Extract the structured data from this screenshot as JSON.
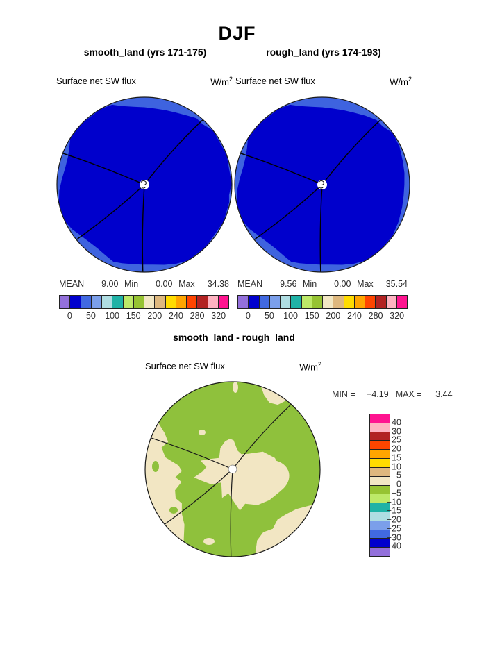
{
  "title": "DJF",
  "panels": [
    {
      "subtitle": "smooth_land (yrs 171-175)",
      "field": "Surface net SW flux",
      "units_base": "W/m",
      "units_exp": "2",
      "stats": {
        "mean_label": "MEAN=",
        "mean": "9.00",
        "min_label": "Min=",
        "min": "0.00",
        "max_label": "Max=",
        "max": "34.38"
      }
    },
    {
      "subtitle": "rough_land (yrs 174-193)",
      "field": "Surface net SW flux",
      "units_base": "W/m",
      "units_exp": "2",
      "stats": {
        "mean_label": "MEAN=",
        "mean": "9.56",
        "min_label": "Min=",
        "min": "0.00",
        "max_label": "Max=",
        "max": "35.54"
      }
    }
  ],
  "diff": {
    "title": "smooth_land - rough_land",
    "field": "Surface net SW flux",
    "units_base": "W/m",
    "units_exp": "2",
    "min_label": "MIN =",
    "min_value": "−4.19",
    "max_label": "MAX =",
    "max_value": "3.44"
  },
  "colorbar_h": {
    "colors": [
      "#9370DB",
      "#0000CD",
      "#4169E1",
      "#7B9FEA",
      "#AFDDE2",
      "#1FB2A6",
      "#BDE968",
      "#96C332",
      "#F2E7C3",
      "#DEB87E",
      "#FFDC00",
      "#FFA500",
      "#FF4500",
      "#B22222",
      "#FFB3C1",
      "#FF1490"
    ],
    "tick_labels": [
      "0",
      "50",
      "100",
      "150",
      "200",
      "240",
      "280",
      "320"
    ]
  },
  "colorbar_v": {
    "colors": [
      "#FF1490",
      "#FFB3C1",
      "#B22222",
      "#FF4500",
      "#FFA500",
      "#FFDC00",
      "#DEB87E",
      "#F2E7C3",
      "#96C332",
      "#BDE968",
      "#1FB2A6",
      "#AFDDE2",
      "#7B9FEA",
      "#4169E1",
      "#0000CD",
      "#9370DB"
    ],
    "tick_labels": [
      "40",
      "30",
      "25",
      "20",
      "15",
      "10",
      "5",
      "0",
      "−5",
      "−10",
      "−15",
      "−20",
      "−25",
      "−30",
      "−40"
    ]
  },
  "map_colors": {
    "flux_fill": "#0000CC",
    "flux_rim": "#3E63DF",
    "diff_negative": "#8FC13C",
    "diff_positive": "#F2E6C3",
    "outline": "#1a1a1a"
  },
  "chart_data": [
    {
      "type": "heatmap",
      "title": "smooth_land (yrs 171-175)",
      "field": "Surface net SW flux",
      "units": "W/m2",
      "projection": "polar",
      "mean": 9.0,
      "min": 0.0,
      "max": 34.38,
      "levels": [
        0,
        25,
        50,
        75,
        100,
        125,
        150,
        175,
        200,
        220,
        240,
        260,
        280,
        300,
        320
      ],
      "labeled_levels": [
        0,
        50,
        100,
        150,
        200,
        240,
        280,
        320
      ],
      "legend_position": "bottom"
    },
    {
      "type": "heatmap",
      "title": "rough_land (yrs 174-193)",
      "field": "Surface net SW flux",
      "units": "W/m2",
      "projection": "polar",
      "mean": 9.56,
      "min": 0.0,
      "max": 35.54,
      "levels": [
        0,
        25,
        50,
        75,
        100,
        125,
        150,
        175,
        200,
        220,
        240,
        260,
        280,
        300,
        320
      ],
      "labeled_levels": [
        0,
        50,
        100,
        150,
        200,
        240,
        280,
        320
      ],
      "legend_position": "bottom"
    },
    {
      "type": "heatmap",
      "title": "smooth_land - rough_land",
      "field": "Surface net SW flux",
      "units": "W/m2",
      "projection": "polar",
      "min": -4.19,
      "max": 3.44,
      "levels": [
        -40,
        -30,
        -25,
        -20,
        -15,
        -10,
        -5,
        0,
        5,
        10,
        15,
        20,
        25,
        30,
        40
      ],
      "legend_position": "right"
    }
  ]
}
